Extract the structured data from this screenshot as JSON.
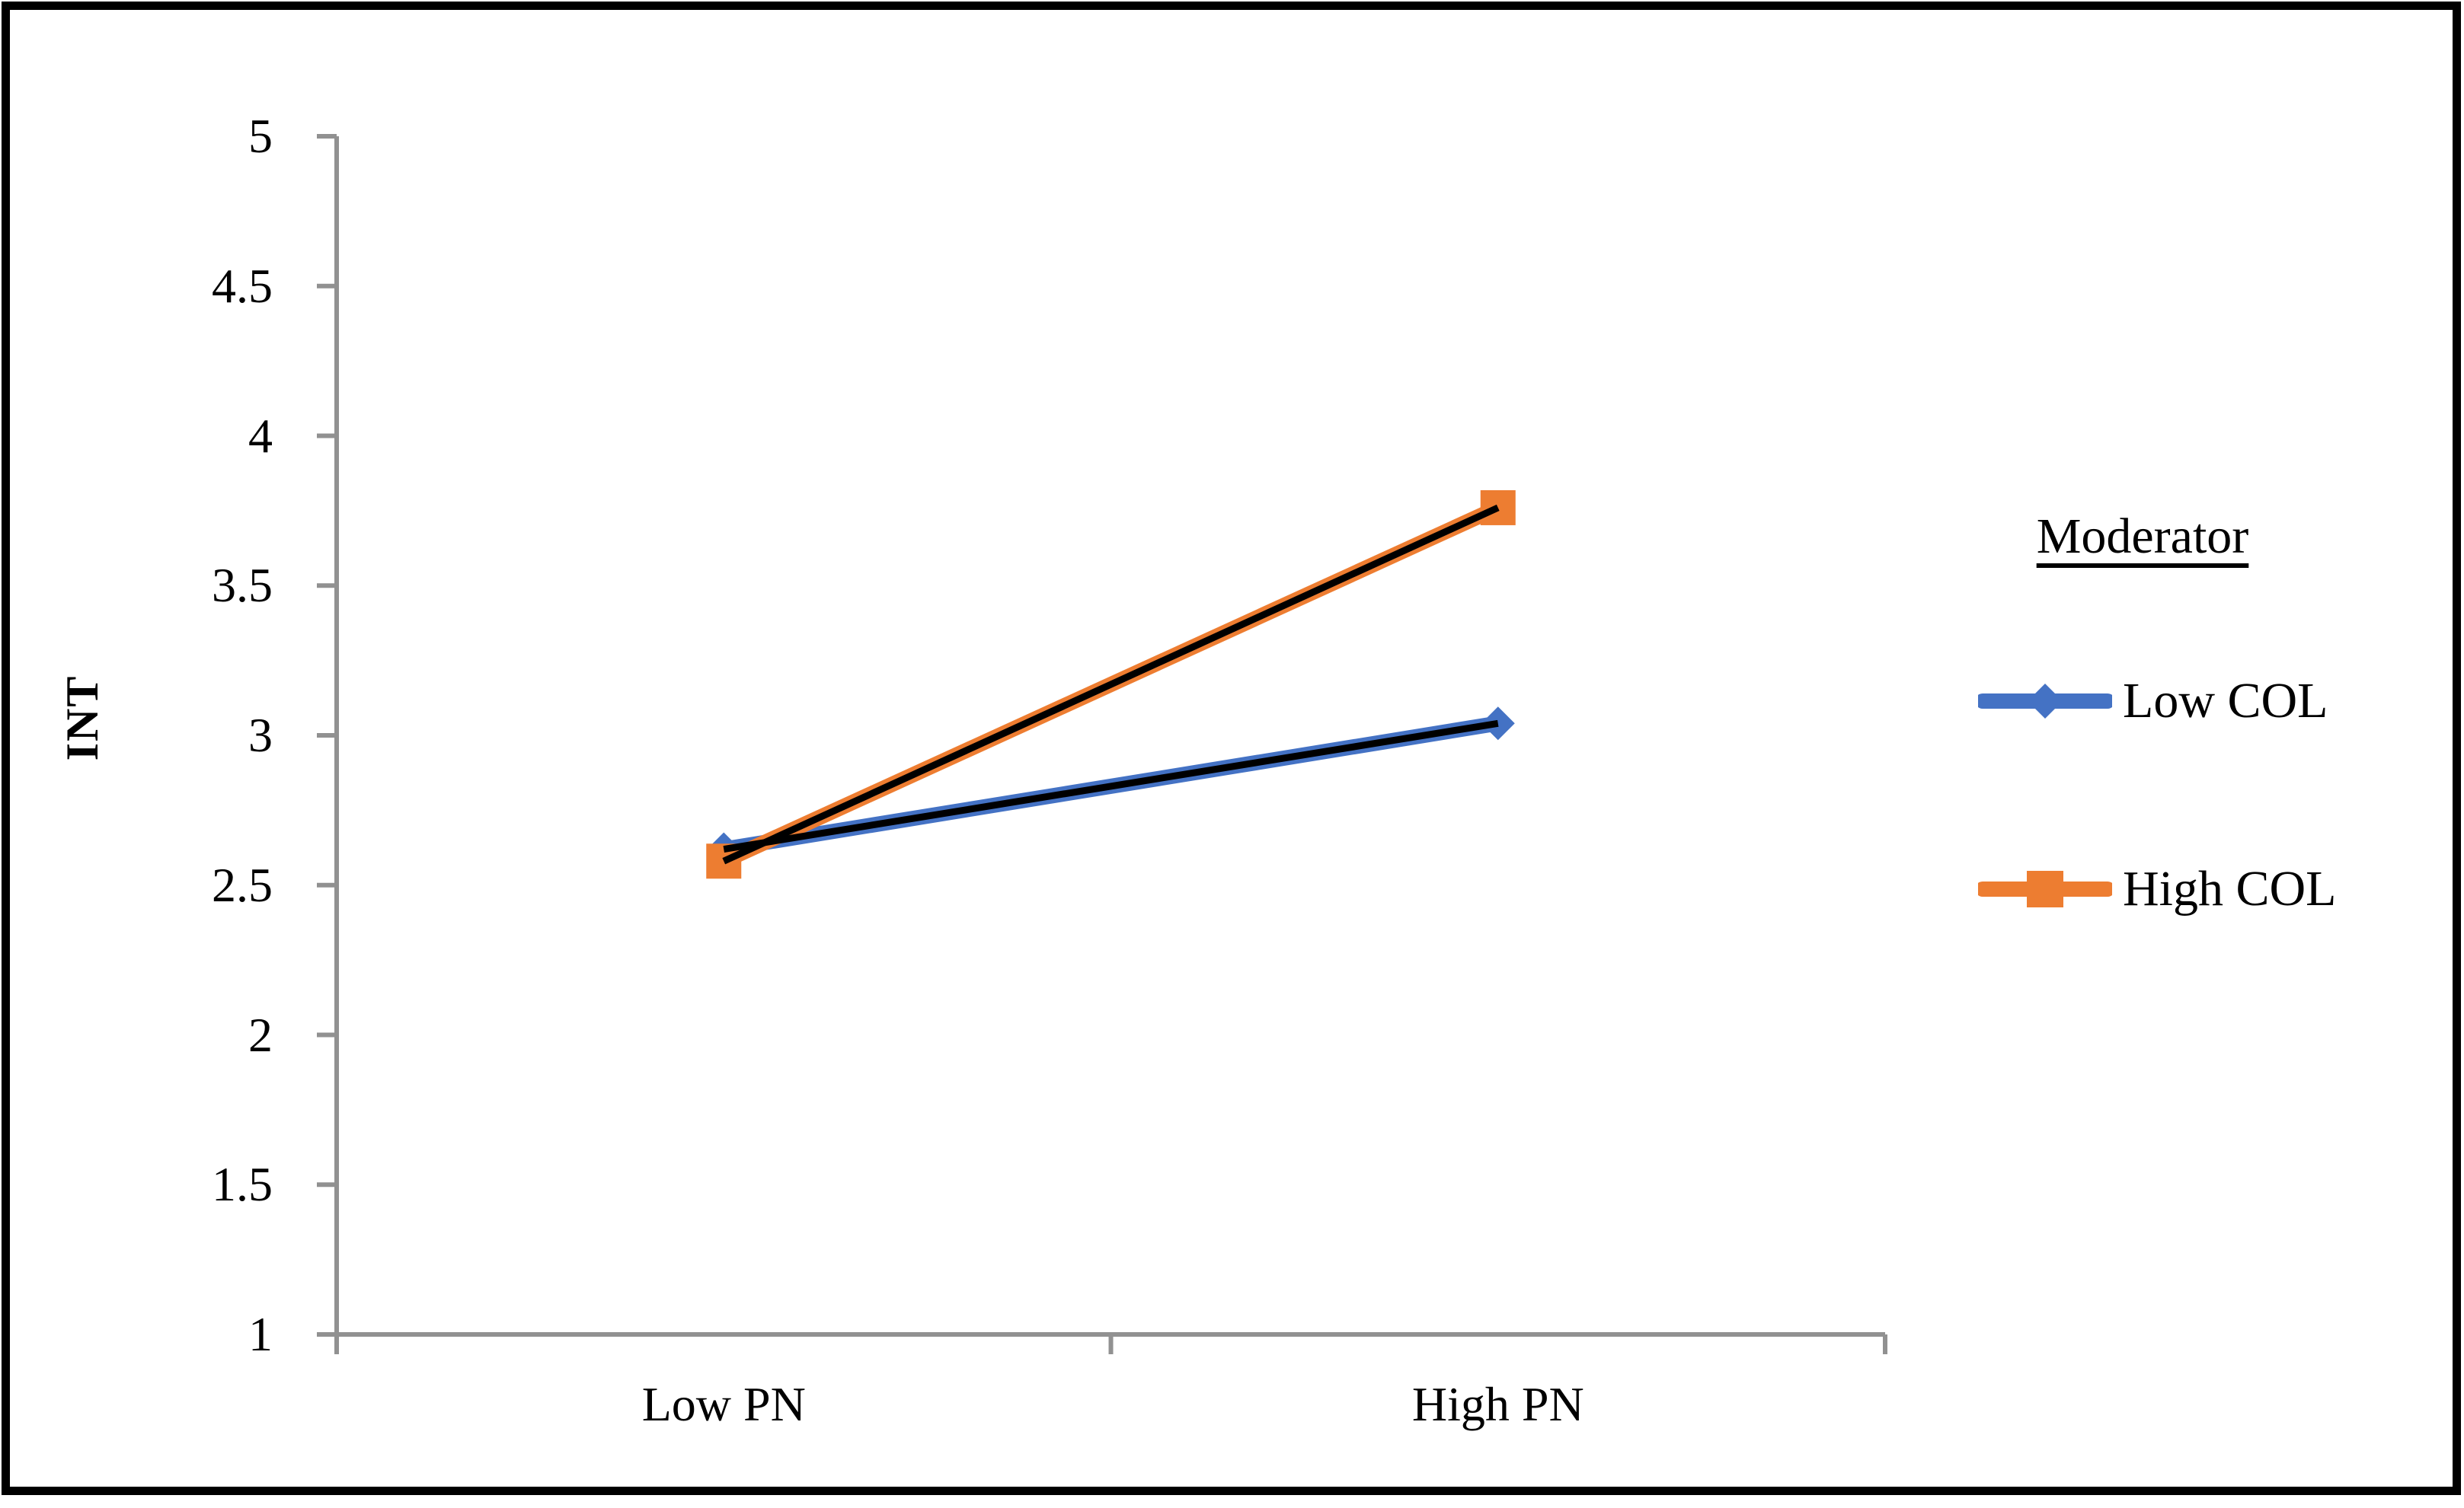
{
  "chart_data": {
    "type": "line",
    "categories": [
      "Low PN",
      "High PN"
    ],
    "series": [
      {
        "name": "Low COL",
        "values": [
          2.62,
          3.04
        ],
        "color": "#4472C4",
        "marker": "diamond"
      },
      {
        "name": "High COL",
        "values": [
          2.58,
          3.76
        ],
        "color": "#ED7D31",
        "marker": "square"
      }
    ],
    "trendline_color": "#000000",
    "title": "",
    "xlabel": "",
    "ylabel": "INT",
    "ylim": [
      1,
      5
    ],
    "ytick_step": 0.5,
    "yticks": [
      "5",
      "4.5",
      "4",
      "3.5",
      "3",
      "2.5",
      "2",
      "1.5",
      "1"
    ],
    "grid": "off",
    "axis_color": "#919191",
    "legend": {
      "title": "Moderator",
      "position": "right"
    }
  }
}
